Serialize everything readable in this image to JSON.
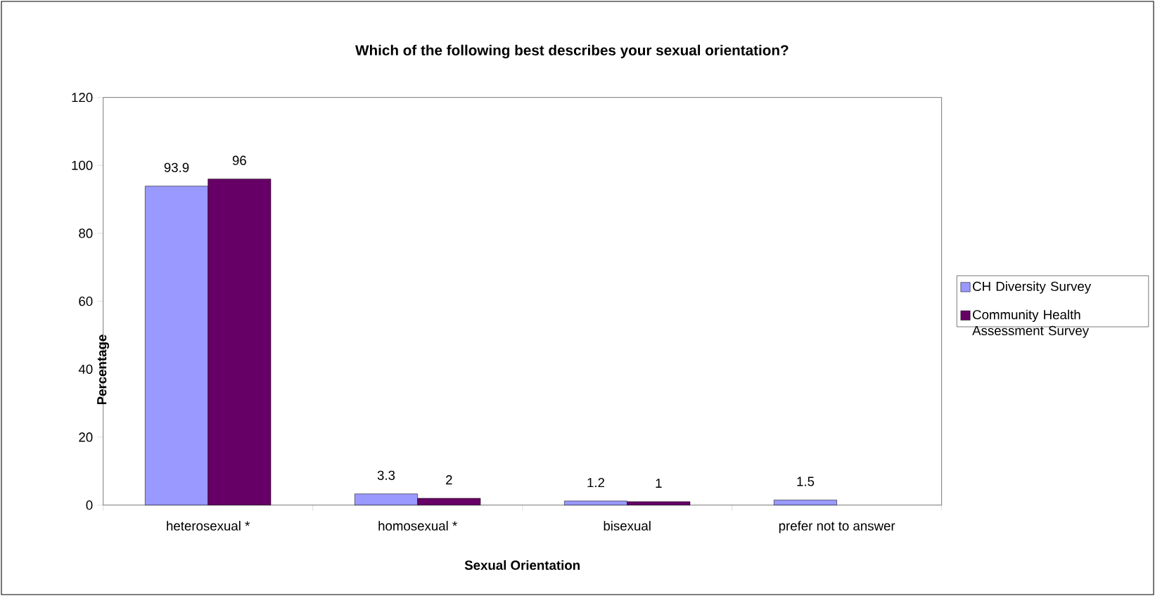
{
  "chart_data": {
    "type": "bar",
    "title": "Which of the following best describes your sexual orientation?",
    "xlabel": "Sexual Orientation",
    "ylabel": "Percentage",
    "categories": [
      "heterosexual *",
      "homosexual *",
      "bisexual",
      "prefer not to answer"
    ],
    "series": [
      {
        "name": "CH Diversity Survey",
        "color": "#9999ff",
        "values": [
          93.9,
          3.3,
          1.2,
          1.5
        ]
      },
      {
        "name": "Community Health Assessment Survey",
        "color": "#660066",
        "values": [
          96,
          2,
          1,
          null
        ]
      }
    ],
    "ylim": [
      0,
      120
    ],
    "yticks": [
      0,
      20,
      40,
      60,
      80,
      100,
      120
    ],
    "grid": false,
    "legend": "right",
    "data_labels": true
  }
}
